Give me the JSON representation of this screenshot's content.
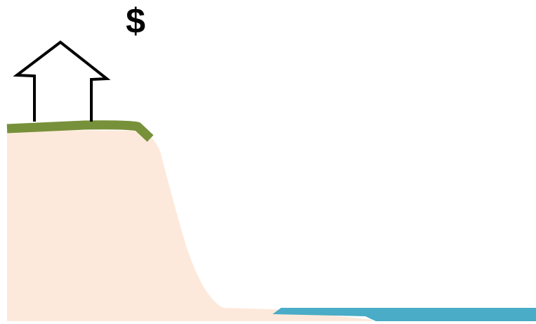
{
  "annotation": {
    "symbol": "$"
  }
}
